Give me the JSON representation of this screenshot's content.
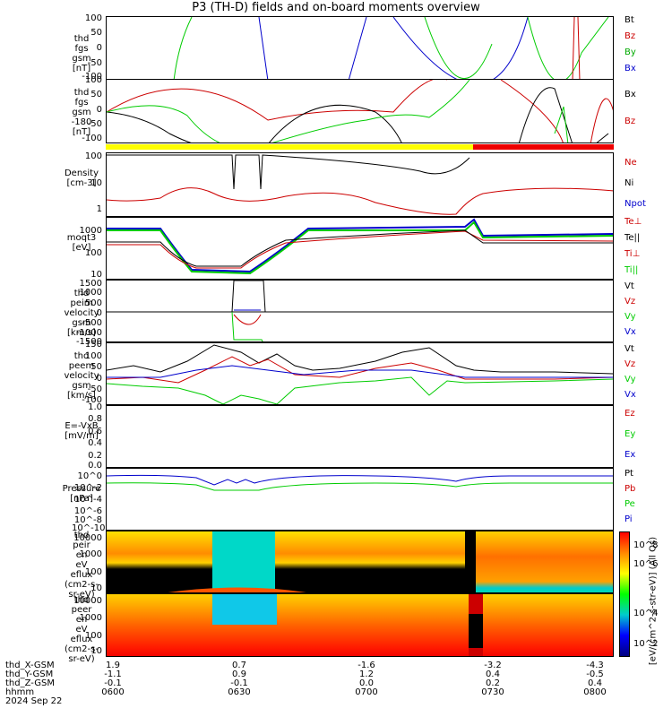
{
  "title": "P3 (TH-D) fields and on-board moments overview",
  "panels": [
    {
      "id": "fgs",
      "ylabel": [
        "thd",
        "fgs",
        "gsm",
        "[nT]"
      ],
      "ticks": [
        "100",
        "50",
        "0",
        "-50",
        "-100"
      ],
      "legend": [
        {
          "label": "Bt",
          "color": "#000000"
        },
        {
          "label": "Bz",
          "color": "#cc0000"
        },
        {
          "label": "By",
          "color": "#00cc00"
        },
        {
          "label": "Bx",
          "color": "#0000cc"
        }
      ]
    },
    {
      "id": "fgs2",
      "ylabel": [
        "thd",
        "fgs",
        "gsm",
        "-180",
        "[nT]"
      ],
      "ticks": [
        "100",
        "50",
        "0",
        "-50",
        "-100"
      ],
      "legend": [
        {
          "label": "Bx",
          "color": "#000000"
        },
        {
          "label": "Bz",
          "color": "#cc0000"
        }
      ]
    },
    {
      "id": "density",
      "ylabel": [
        "Density",
        "[cm-3]"
      ],
      "ticks": [
        "100",
        "10",
        "1"
      ],
      "legend": [
        {
          "label": "Ne",
          "color": "#cc0000"
        },
        {
          "label": "Ni",
          "color": "#000000"
        },
        {
          "label": "Npot",
          "color": "#0000cc"
        }
      ]
    },
    {
      "id": "temp",
      "ylabel": [
        "moqt3",
        "[eV]"
      ],
      "ticks": [
        "1000",
        "100",
        "10"
      ],
      "legend": [
        {
          "label": "Te⊥",
          "color": "#cc0000"
        },
        {
          "label": "Te||",
          "color": "#000000"
        },
        {
          "label": "Ti⊥",
          "color": "#cc0000"
        },
        {
          "label": "Ti||",
          "color": "#00cc00"
        }
      ]
    },
    {
      "id": "peim",
      "ylabel": [
        "thd",
        "peim",
        "velocity",
        "gsm",
        "[km/s]"
      ],
      "ticks": [
        "1500",
        "1000",
        "500",
        "0",
        "-500",
        "-1000",
        "-1500"
      ],
      "legend": [
        {
          "label": "Vt",
          "color": "#000000"
        },
        {
          "label": "Vz",
          "color": "#cc0000"
        },
        {
          "label": "Vy",
          "color": "#00cc00"
        },
        {
          "label": "Vx",
          "color": "#0000cc"
        }
      ]
    },
    {
      "id": "peem",
      "ylabel": [
        "thd",
        "peem",
        "velocity",
        "gsm",
        "[km/s]"
      ],
      "ticks": [
        "150",
        "100",
        "50",
        "0",
        "-50",
        "-100"
      ],
      "legend": [
        {
          "label": "Vt",
          "color": "#000000"
        },
        {
          "label": "Vz",
          "color": "#cc0000"
        },
        {
          "label": "Vy",
          "color": "#00cc00"
        },
        {
          "label": "Vx",
          "color": "#0000cc"
        }
      ]
    },
    {
      "id": "efield",
      "ylabel": [
        "E=-VxB",
        "[mV/m]"
      ],
      "ticks": [
        "1.0",
        "0.8",
        "0.6",
        "0.4",
        "0.2",
        "0.0"
      ],
      "legend": [
        {
          "label": "Ez",
          "color": "#cc0000"
        },
        {
          "label": "Ey",
          "color": "#00cc00"
        },
        {
          "label": "Ex",
          "color": "#0000cc"
        }
      ]
    },
    {
      "id": "pressure",
      "ylabel": [
        "Pressure",
        "[nPa]"
      ],
      "ticks": [
        "10^0",
        "10^-2",
        "10^-4",
        "10^-6",
        "10^-8",
        "10^-10"
      ],
      "legend": [
        {
          "label": "Pt",
          "color": "#000000"
        },
        {
          "label": "Pb",
          "color": "#cc0000"
        },
        {
          "label": "Pe",
          "color": "#00cc00"
        },
        {
          "label": "Pi",
          "color": "#0000cc"
        }
      ]
    },
    {
      "id": "peir",
      "ylabel": [
        "thd",
        "peir",
        "en",
        "eV",
        "eflux",
        "(cm2-s-",
        "sr-eV)"
      ],
      "ticks": [
        "10000",
        "1000",
        "100",
        "10"
      ],
      "legend": []
    },
    {
      "id": "peer",
      "ylabel": [
        "thd",
        "peer",
        "en",
        "eV",
        "eflux",
        "(cm2-s-",
        "sr-eV)"
      ],
      "ticks": [
        "10000",
        "1000",
        "100",
        "10"
      ],
      "legend": []
    }
  ],
  "colorbar": {
    "ticks": [
      "10^8",
      "10^6",
      "10^4",
      "10^2"
    ],
    "label": "[eV/(cm^2-s-str-eV)] (All Qs)"
  },
  "xaxis": {
    "rows": [
      {
        "label": "thd_X-GSM",
        "values": [
          "1.9",
          "0.7",
          "-1.6",
          "-3.2",
          "-4.3"
        ]
      },
      {
        "label": "thd_Y-GSM",
        "values": [
          "-1.1",
          "0.9",
          "1.2",
          "0.4",
          "-0.5"
        ]
      },
      {
        "label": "thd_Z-GSM",
        "values": [
          "-0.1",
          "-0.1",
          "0.0",
          "0.2",
          "0.4"
        ]
      },
      {
        "label": "hhmm",
        "values": [
          "0600",
          "0630",
          "0700",
          "0730",
          "0800"
        ]
      }
    ],
    "date": "2024 Sep 22"
  },
  "chart_data": [
    {
      "type": "line",
      "title": "P3 (TH-D) fields and on-board moments overview",
      "ylabel": "thd fgs gsm [nT]",
      "ylim": [
        -100,
        100
      ],
      "x": [
        "0600",
        "0630",
        "0700",
        "0730",
        "0800"
      ],
      "series": [
        {
          "name": "Bt",
          "values": [
            null,
            null,
            null,
            null,
            null
          ]
        },
        {
          "name": "Bz",
          "values": [
            null,
            null,
            null,
            null,
            null
          ]
        },
        {
          "name": "By",
          "values": [
            -100,
            null,
            null,
            20,
            0
          ]
        },
        {
          "name": "Bx",
          "values": [
            null,
            100,
            null,
            -100,
            100
          ]
        }
      ]
    },
    {
      "type": "line",
      "ylabel": "thd fgs gsm -180 [nT]",
      "ylim": [
        -120,
        100
      ],
      "x": [
        "0600",
        "0615",
        "0630",
        "0645",
        "0700",
        "0715",
        "0730",
        "0745",
        "0800"
      ],
      "series": [
        {
          "name": "Bx",
          "values": [
            5,
            -40,
            -110,
            -60,
            30,
            10,
            -110,
            -50,
            -110
          ]
        },
        {
          "name": "Bz",
          "values": [
            0,
            60,
            20,
            -20,
            20,
            0,
            -110,
            70,
            -110
          ]
        }
      ]
    },
    {
      "type": "line",
      "ylabel": "Density [cm-3]",
      "ylim": [
        0.5,
        100
      ],
      "scale": "log",
      "x": [
        "0600",
        "0615",
        "0630",
        "0645",
        "0700",
        "0715",
        "0730",
        "0745",
        "0800"
      ],
      "series": [
        {
          "name": "Ne",
          "values": [
            2,
            5,
            3,
            5,
            2,
            0.6,
            5,
            5,
            4.5
          ]
        },
        {
          "name": "Ni",
          "values": [
            100,
            100,
            100,
            100,
            30,
            10,
            null,
            null,
            null
          ]
        }
      ]
    },
    {
      "type": "line",
      "ylabel": "moqt3 [eV]",
      "ylim": [
        5,
        3000
      ],
      "scale": "log",
      "x": [
        "0600",
        "0615",
        "0630",
        "0645",
        "0700",
        "0715",
        "0730",
        "0745",
        "0800"
      ],
      "series": [
        {
          "name": "Te⊥",
          "values": [
            300,
            300,
            15,
            300,
            400,
            700,
            300,
            300,
            300
          ]
        },
        {
          "name": "Te||",
          "values": [
            250,
            250,
            15,
            250,
            500,
            700,
            300,
            300,
            300
          ]
        },
        {
          "name": "Ti⊥",
          "values": [
            1500,
            1500,
            10,
            1500,
            1800,
            1800,
            1600,
            1500,
            1500
          ]
        },
        {
          "name": "Ti||",
          "values": [
            1200,
            1200,
            10,
            1200,
            1600,
            1600,
            1500,
            1300,
            1300
          ]
        }
      ]
    },
    {
      "type": "line",
      "ylabel": "thd peim velocity gsm [km/s]",
      "ylim": [
        -1500,
        1500
      ],
      "x": [
        "0600",
        "0620",
        "0628",
        "0634",
        "0640",
        "0700",
        "0800"
      ],
      "series": [
        {
          "name": "Vt",
          "values": [
            0,
            0,
            1500,
            0,
            -1500,
            0,
            0
          ]
        },
        {
          "name": "Vz",
          "values": [
            0,
            0,
            200,
            0,
            -200,
            0,
            0
          ]
        },
        {
          "name": "Vy",
          "values": [
            0,
            0,
            -1500,
            0,
            1500,
            0,
            0
          ]
        },
        {
          "name": "Vx",
          "values": [
            0,
            0,
            100,
            0,
            -100,
            0,
            0
          ]
        }
      ]
    },
    {
      "type": "line",
      "ylabel": "thd peem velocity gsm [km/s]",
      "ylim": [
        -130,
        150
      ],
      "x": [
        "0600",
        "0615",
        "0630",
        "0645",
        "0700",
        "0715",
        "0730",
        "0745",
        "0800"
      ],
      "series": [
        {
          "name": "Vt",
          "values": [
            40,
            70,
            100,
            60,
            20,
            100,
            20,
            20,
            20
          ]
        },
        {
          "name": "Vz",
          "values": [
            10,
            30,
            60,
            30,
            0,
            0,
            -10,
            -10,
            -10
          ]
        },
        {
          "name": "Vy",
          "values": [
            -50,
            -70,
            -90,
            -60,
            -20,
            -60,
            -20,
            -20,
            -20
          ]
        },
        {
          "name": "Vx",
          "values": [
            20,
            10,
            40,
            10,
            10,
            10,
            0,
            0,
            0
          ]
        }
      ]
    },
    {
      "type": "line",
      "ylabel": "E=-VxB [mV/m]",
      "ylim": [
        0,
        1
      ],
      "series": [
        {
          "name": "Ez",
          "values": []
        },
        {
          "name": "Ey",
          "values": []
        },
        {
          "name": "Ex",
          "values": []
        }
      ]
    },
    {
      "type": "line",
      "ylabel": "Pressure [nPa]",
      "scale": "log",
      "ylim": [
        1e-10,
        10
      ],
      "x": [
        "0600",
        "0615",
        "0630",
        "0645",
        "0700",
        "0715",
        "0730",
        "0745",
        "0800"
      ],
      "series": [
        {
          "name": "Pi",
          "values": [
            1,
            0.7,
            0.3,
            1,
            1,
            0.5,
            1,
            1,
            1
          ]
        },
        {
          "name": "Pe",
          "values": [
            0.1,
            0.08,
            0.02,
            0.1,
            0.1,
            0.08,
            0.1,
            0.1,
            0.1
          ]
        }
      ]
    },
    {
      "type": "heatmap",
      "ylabel": "thd peir en eV eflux (cm2-s-sr-eV)",
      "ylim": [
        5,
        30000
      ],
      "scale": "log"
    },
    {
      "type": "heatmap",
      "ylabel": "thd peer en eV eflux (cm2-s-sr-eV)",
      "ylim": [
        5,
        30000
      ],
      "scale": "log"
    }
  ]
}
